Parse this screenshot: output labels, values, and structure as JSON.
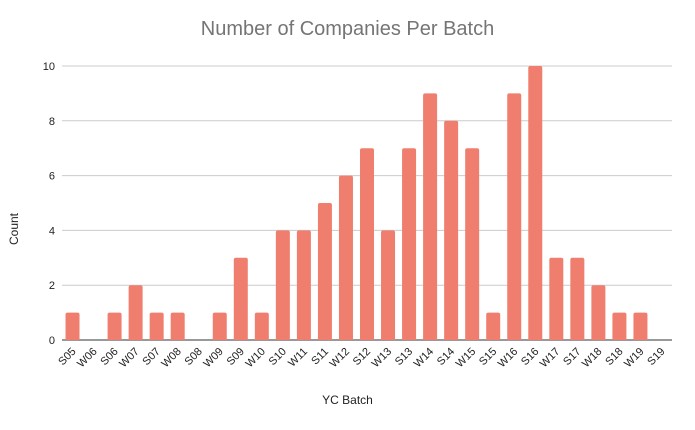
{
  "chart_data": {
    "type": "bar",
    "title": "Number of Companies Per Batch",
    "xlabel": "YC Batch",
    "ylabel": "Count",
    "ylim": [
      0,
      10
    ],
    "yticks": [
      0,
      2,
      4,
      6,
      8,
      10
    ],
    "grid": true,
    "bar_color": "#EF7E6E",
    "categories": [
      "S05",
      "W06",
      "S06",
      "W07",
      "S07",
      "W08",
      "S08",
      "W09",
      "S09",
      "W10",
      "S10",
      "W11",
      "S11",
      "W12",
      "S12",
      "W13",
      "S13",
      "W14",
      "S14",
      "W15",
      "S15",
      "W16",
      "S16",
      "W17",
      "S17",
      "W18",
      "S18",
      "W19",
      "S19"
    ],
    "values": [
      1,
      0,
      1,
      2,
      1,
      1,
      0,
      1,
      3,
      1,
      4,
      4,
      5,
      6,
      7,
      4,
      7,
      9,
      8,
      7,
      1,
      9,
      10,
      3,
      3,
      2,
      1,
      1,
      0
    ]
  }
}
